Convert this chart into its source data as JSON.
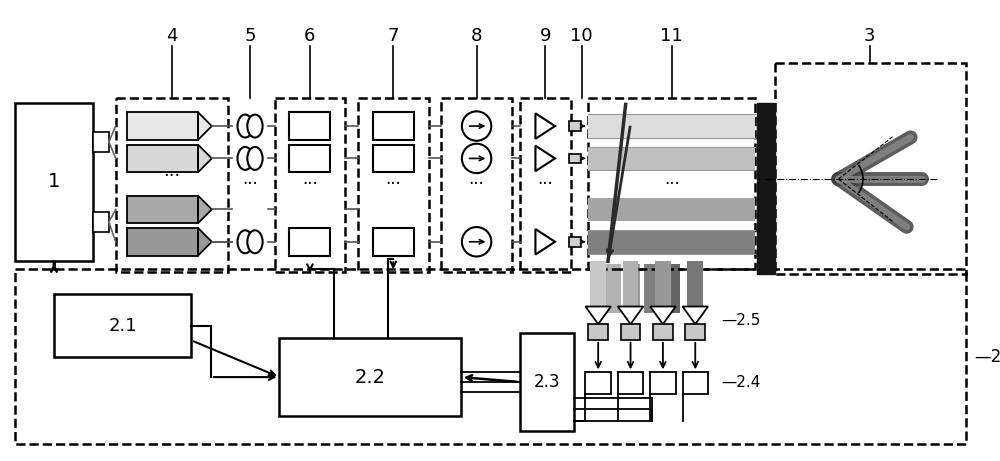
{
  "bg_color": "#ffffff",
  "figsize": [
    10.0,
    4.61
  ],
  "beam_colors": [
    "#e0e0e0",
    "#c8c8c8",
    "#b0b0b0",
    "#909090"
  ],
  "amp_colors_light": [
    "#e0e0e0",
    "#d0d0d0"
  ],
  "amp_colors_dark": [
    "#a0a0a0",
    "#909090"
  ],
  "fiber_gray": [
    "#d8d8d8",
    "#c0c0c0",
    "#a8a8a8",
    "#888888"
  ]
}
